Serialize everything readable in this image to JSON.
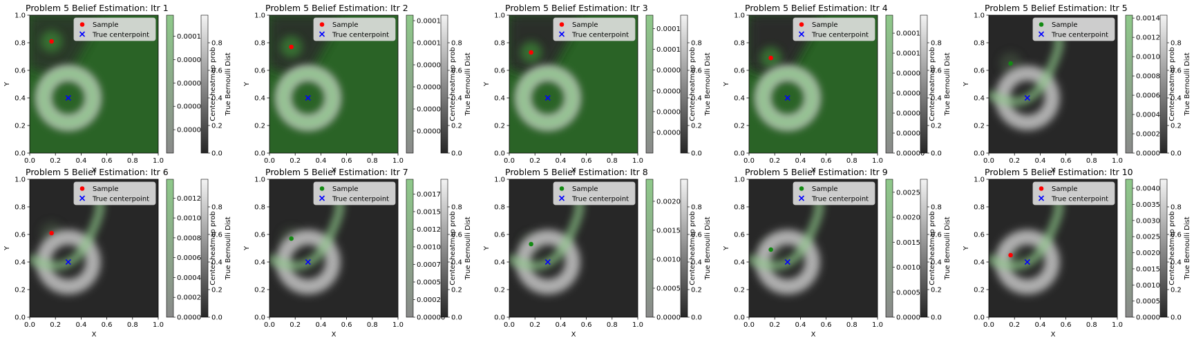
{
  "figure": {
    "cbar_labels": {
      "heat": "Center heatmap prob",
      "bern": "True Bernoulli Dist"
    },
    "colors": {
      "green_dark": "#2a6326",
      "green_mid": "#4f8a4a",
      "green_light": "#8ec98a",
      "bg_dark": "#272727",
      "sample_red": "#ff0000",
      "sample_green": "#138a13",
      "center_blue": "#0000ff"
    }
  },
  "chart_data": [
    {
      "type": "heatmap",
      "title": "Problem 5 Belief Estimation: Itr 1",
      "xlabel": "X",
      "ylabel": "Y",
      "xlim": [
        0,
        1
      ],
      "ylim": [
        0,
        1
      ],
      "x_ticks": [
        "0.0",
        "0.2",
        "0.4",
        "0.6",
        "0.8",
        "1.0"
      ],
      "y_ticks": [
        "0.0",
        "0.2",
        "0.4",
        "0.6",
        "0.8",
        "1.0"
      ],
      "sample": {
        "x": 0.17,
        "y": 0.81,
        "color": "red"
      },
      "true_centerpoint": {
        "x": 0.3,
        "y": 0.4
      },
      "legend": [
        "Sample",
        "True centerpoint"
      ],
      "legend_position": "top-right",
      "colorbar_heat_ticks": [
        "0.00002",
        "0.00004",
        "0.00006",
        "0.00008",
        "0.00010"
      ],
      "colorbar_heat_max": 0.000118,
      "colorbar_bern_ticks": [
        "0.0",
        "0.2",
        "0.4",
        "0.6",
        "0.8"
      ]
    },
    {
      "type": "heatmap",
      "title": "Problem 5 Belief Estimation: Itr 2",
      "xlabel": "X",
      "ylabel": "Y",
      "xlim": [
        0,
        1
      ],
      "ylim": [
        0,
        1
      ],
      "x_ticks": [
        "0.0",
        "0.2",
        "0.4",
        "0.6",
        "0.8",
        "1.0"
      ],
      "y_ticks": [
        "0.0",
        "0.2",
        "0.4",
        "0.6",
        "0.8",
        "1.0"
      ],
      "sample": {
        "x": 0.17,
        "y": 0.77,
        "color": "red"
      },
      "true_centerpoint": {
        "x": 0.3,
        "y": 0.4
      },
      "legend": [
        "Sample",
        "True centerpoint"
      ],
      "legend_position": "top-right",
      "colorbar_heat_ticks": [
        "0.00002",
        "0.00004",
        "0.00006",
        "0.00008",
        "0.00010",
        "0.00012"
      ],
      "colorbar_heat_max": 0.000125,
      "colorbar_bern_ticks": [
        "0.0",
        "0.2",
        "0.4",
        "0.6",
        "0.8"
      ]
    },
    {
      "type": "heatmap",
      "title": "Problem 5 Belief Estimation: Itr 3",
      "xlabel": "X",
      "ylabel": "Y",
      "xlim": [
        0,
        1
      ],
      "ylim": [
        0,
        1
      ],
      "x_ticks": [
        "0.0",
        "0.2",
        "0.4",
        "0.6",
        "0.8",
        "1.0"
      ],
      "y_ticks": [
        "0.0",
        "0.2",
        "0.4",
        "0.6",
        "0.8",
        "1.0"
      ],
      "sample": {
        "x": 0.17,
        "y": 0.73,
        "color": "red"
      },
      "true_centerpoint": {
        "x": 0.3,
        "y": 0.4
      },
      "legend": [
        "Sample",
        "True centerpoint"
      ],
      "legend_position": "top-right",
      "colorbar_heat_ticks": [
        "0.00002",
        "0.00004",
        "0.00006",
        "0.00008",
        "0.00010",
        "0.00012"
      ],
      "colorbar_heat_max": 0.000133,
      "colorbar_bern_ticks": [
        "0.0",
        "0.2",
        "0.4",
        "0.6",
        "0.8"
      ]
    },
    {
      "type": "heatmap",
      "title": "Problem 5 Belief Estimation: Itr 4",
      "xlabel": "X",
      "ylabel": "Y",
      "xlim": [
        0,
        1
      ],
      "ylim": [
        0,
        1
      ],
      "x_ticks": [
        "0.0",
        "0.2",
        "0.4",
        "0.6",
        "0.8",
        "1.0"
      ],
      "y_ticks": [
        "0.0",
        "0.2",
        "0.4",
        "0.6",
        "0.8",
        "1.0"
      ],
      "sample": {
        "x": 0.17,
        "y": 0.69,
        "color": "red"
      },
      "true_centerpoint": {
        "x": 0.3,
        "y": 0.4
      },
      "legend": [
        "Sample",
        "True centerpoint"
      ],
      "legend_position": "top-right",
      "colorbar_heat_ticks": [
        "0.00000",
        "0.00002",
        "0.00004",
        "0.00006",
        "0.00008",
        "0.00010",
        "0.00012"
      ],
      "colorbar_heat_max": 0.000138,
      "colorbar_bern_ticks": [
        "0.0",
        "0.2",
        "0.4",
        "0.6",
        "0.8"
      ]
    },
    {
      "type": "heatmap",
      "title": "Problem 5 Belief Estimation: Itr 5",
      "xlabel": "X",
      "ylabel": "Y",
      "xlim": [
        0,
        1
      ],
      "ylim": [
        0,
        1
      ],
      "x_ticks": [
        "0.0",
        "0.2",
        "0.4",
        "0.6",
        "0.8",
        "1.0"
      ],
      "y_ticks": [
        "0.0",
        "0.2",
        "0.4",
        "0.6",
        "0.8",
        "1.0"
      ],
      "sample": {
        "x": 0.17,
        "y": 0.65,
        "color": "green"
      },
      "true_centerpoint": {
        "x": 0.3,
        "y": 0.4
      },
      "legend": [
        "Sample",
        "True centerpoint"
      ],
      "legend_position": "top-right",
      "colorbar_heat_ticks": [
        "0.0000",
        "0.0002",
        "0.0004",
        "0.0006",
        "0.0008",
        "0.0010",
        "0.0012",
        "0.0014"
      ],
      "colorbar_heat_max": 0.00143,
      "colorbar_bern_ticks": [
        "0.0",
        "0.2",
        "0.4",
        "0.6",
        "0.8"
      ]
    },
    {
      "type": "heatmap",
      "title": "Problem 5 Belief Estimation: Itr 6",
      "xlabel": "X",
      "ylabel": "Y",
      "xlim": [
        0,
        1
      ],
      "ylim": [
        0,
        1
      ],
      "x_ticks": [
        "0.0",
        "0.2",
        "0.4",
        "0.6",
        "0.8",
        "1.0"
      ],
      "y_ticks": [
        "0.0",
        "0.2",
        "0.4",
        "0.6",
        "0.8",
        "1.0"
      ],
      "sample": {
        "x": 0.17,
        "y": 0.61,
        "color": "red"
      },
      "true_centerpoint": {
        "x": 0.3,
        "y": 0.4
      },
      "legend": [
        "Sample",
        "True centerpoint"
      ],
      "legend_position": "top-right",
      "colorbar_heat_ticks": [
        "0.0000",
        "0.0002",
        "0.0004",
        "0.0006",
        "0.0008",
        "0.0010",
        "0.0012"
      ],
      "colorbar_heat_max": 0.00139,
      "colorbar_bern_ticks": [
        "0.0",
        "0.2",
        "0.4",
        "0.6",
        "0.8"
      ]
    },
    {
      "type": "heatmap",
      "title": "Problem 5 Belief Estimation: Itr 7",
      "xlabel": "X",
      "ylabel": "Y",
      "xlim": [
        0,
        1
      ],
      "ylim": [
        0,
        1
      ],
      "x_ticks": [
        "0.0",
        "0.2",
        "0.4",
        "0.6",
        "0.8",
        "1.0"
      ],
      "y_ticks": [
        "0.0",
        "0.2",
        "0.4",
        "0.6",
        "0.8",
        "1.0"
      ],
      "sample": {
        "x": 0.17,
        "y": 0.57,
        "color": "green"
      },
      "true_centerpoint": {
        "x": 0.3,
        "y": 0.4
      },
      "legend": [
        "Sample",
        "True centerpoint"
      ],
      "legend_position": "top-right",
      "colorbar_heat_ticks": [
        "0.00000",
        "0.00025",
        "0.00050",
        "0.00075",
        "0.00100",
        "0.00125",
        "0.00150",
        "0.00175"
      ],
      "colorbar_heat_max": 0.00196,
      "colorbar_bern_ticks": [
        "0.0",
        "0.2",
        "0.4",
        "0.6",
        "0.8"
      ]
    },
    {
      "type": "heatmap",
      "title": "Problem 5 Belief Estimation: Itr 8",
      "xlabel": "X",
      "ylabel": "Y",
      "xlim": [
        0,
        1
      ],
      "ylim": [
        0,
        1
      ],
      "x_ticks": [
        "0.0",
        "0.2",
        "0.4",
        "0.6",
        "0.8",
        "1.0"
      ],
      "y_ticks": [
        "0.0",
        "0.2",
        "0.4",
        "0.6",
        "0.8",
        "1.0"
      ],
      "sample": {
        "x": 0.17,
        "y": 0.53,
        "color": "green"
      },
      "true_centerpoint": {
        "x": 0.3,
        "y": 0.4
      },
      "legend": [
        "Sample",
        "True centerpoint"
      ],
      "legend_position": "top-right",
      "colorbar_heat_ticks": [
        "0.0000",
        "0.0005",
        "0.0010",
        "0.0015",
        "0.0020"
      ],
      "colorbar_heat_max": 0.00238,
      "colorbar_bern_ticks": [
        "0.0",
        "0.2",
        "0.4",
        "0.6",
        "0.8"
      ]
    },
    {
      "type": "heatmap",
      "title": "Problem 5 Belief Estimation: Itr 9",
      "xlabel": "X",
      "ylabel": "Y",
      "xlim": [
        0,
        1
      ],
      "ylim": [
        0,
        1
      ],
      "x_ticks": [
        "0.0",
        "0.2",
        "0.4",
        "0.6",
        "0.8",
        "1.0"
      ],
      "y_ticks": [
        "0.0",
        "0.2",
        "0.4",
        "0.6",
        "0.8",
        "1.0"
      ],
      "sample": {
        "x": 0.17,
        "y": 0.49,
        "color": "green"
      },
      "true_centerpoint": {
        "x": 0.3,
        "y": 0.4
      },
      "legend": [
        "Sample",
        "True centerpoint"
      ],
      "legend_position": "top-right",
      "colorbar_heat_ticks": [
        "0.0000",
        "0.0005",
        "0.0010",
        "0.0015",
        "0.0020",
        "0.0025"
      ],
      "colorbar_heat_max": 0.00276,
      "colorbar_bern_ticks": [
        "0.0",
        "0.2",
        "0.4",
        "0.6",
        "0.8"
      ]
    },
    {
      "type": "heatmap",
      "title": "Problem 5 Belief Estimation: Itr 10",
      "xlabel": "X",
      "ylabel": "Y",
      "xlim": [
        0,
        1
      ],
      "ylim": [
        0,
        1
      ],
      "x_ticks": [
        "0.0",
        "0.2",
        "0.4",
        "0.6",
        "0.8",
        "1.0"
      ],
      "y_ticks": [
        "0.0",
        "0.2",
        "0.4",
        "0.6",
        "0.8",
        "1.0"
      ],
      "sample": {
        "x": 0.17,
        "y": 0.45,
        "color": "red"
      },
      "true_centerpoint": {
        "x": 0.3,
        "y": 0.4
      },
      "legend": [
        "Sample",
        "True centerpoint"
      ],
      "legend_position": "top-right",
      "colorbar_heat_ticks": [
        "0.0000",
        "0.0005",
        "0.0010",
        "0.0015",
        "0.0020",
        "0.0025",
        "0.0030",
        "0.0035",
        "0.0040"
      ],
      "colorbar_heat_max": 0.00428,
      "colorbar_bern_ticks": [
        "0.0",
        "0.2",
        "0.4",
        "0.6",
        "0.8"
      ]
    }
  ]
}
